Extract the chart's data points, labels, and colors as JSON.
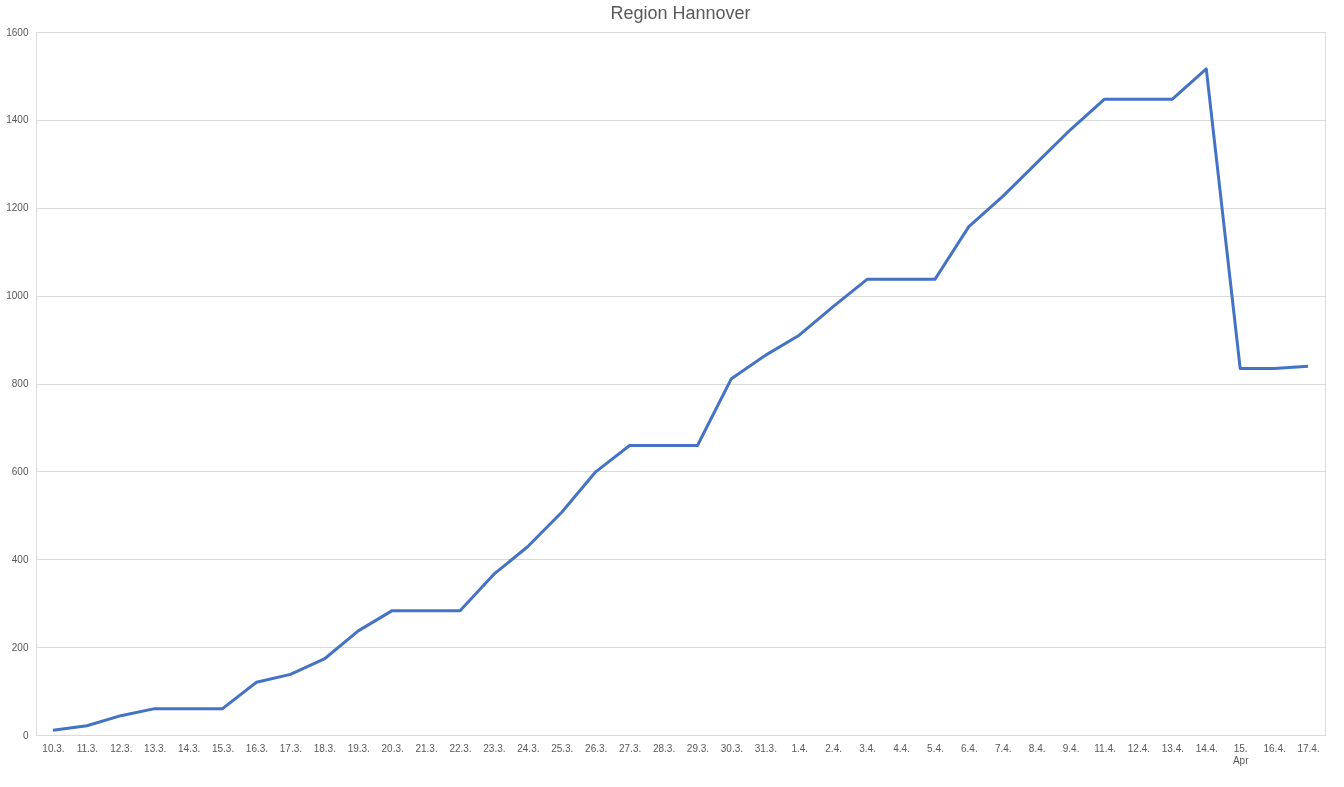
{
  "chart_data": {
    "type": "line",
    "title": "Region Hannover",
    "categories": [
      "10.3.",
      "11.3.",
      "12.3.",
      "13.3.",
      "14.3.",
      "15.3.",
      "16.3.",
      "17.3.",
      "18.3.",
      "19.3.",
      "20.3.",
      "21.3.",
      "22.3.",
      "23.3.",
      "24.3.",
      "25.3.",
      "26.3.",
      "27.3.",
      "28.3.",
      "29.3.",
      "30.3.",
      "31.3.",
      "1.4.",
      "2.4.",
      "3.4.",
      "4.4.",
      "5.4.",
      "6.4.",
      "7.4.",
      "8.4.",
      "9.4.",
      "11.4.",
      "12.4.",
      "13.4.",
      "14.4.",
      "15. Apr",
      "16.4.",
      "17.4."
    ],
    "series": [
      {
        "color": "#4472c4",
        "values": [
          11,
          21,
          44,
          60,
          60,
          60,
          120,
          138,
          173,
          237,
          283,
          283,
          283,
          366,
          429,
          507,
          599,
          659,
          659,
          659,
          811,
          864,
          910,
          975,
          1037,
          1037,
          1037,
          1157,
          1226,
          1302,
          1378,
          1447,
          1447,
          1447,
          1516,
          834,
          834,
          839
        ]
      }
    ],
    "ylim": [
      0,
      1600
    ],
    "yticks": [
      0,
      200,
      400,
      600,
      800,
      1000,
      1200,
      1400,
      1600
    ],
    "grid": "y",
    "legend": false,
    "marker": "none",
    "line_style": "solid"
  }
}
